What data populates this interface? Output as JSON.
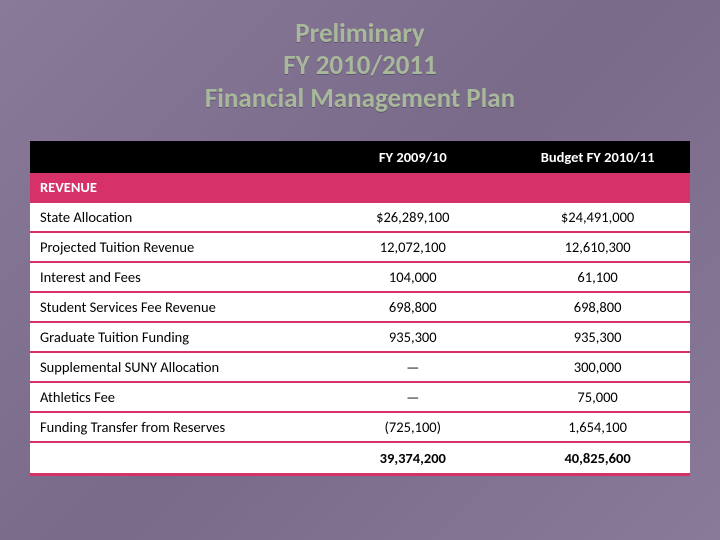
{
  "title": {
    "line1": "Preliminary",
    "line2": "FY 2010/2011",
    "line3": "Financial Management Plan",
    "color": "#a8b89a",
    "fontsize": 27
  },
  "background": {
    "gradient_start": "#8a7a9a",
    "gradient_mid": "#7a6a8a",
    "gradient_end": "#8a7a9a"
  },
  "table": {
    "columns": [
      {
        "label": "",
        "width": "44%"
      },
      {
        "label": "FY 2009/10",
        "width": "28%"
      },
      {
        "label": "Budget FY 2010/11",
        "width": "28%"
      }
    ],
    "section_label": "REVENUE",
    "rows": [
      {
        "label": "State Allocation",
        "fy2009": "$26,289,100",
        "fy2010": "$24,491,000"
      },
      {
        "label": "Projected Tuition Revenue",
        "fy2009": "12,072,100",
        "fy2010": "12,610,300"
      },
      {
        "label": "Interest and Fees",
        "fy2009": "104,000",
        "fy2010": "61,100"
      },
      {
        "label": "Student Services Fee Revenue",
        "fy2009": "698,800",
        "fy2010": "698,800"
      },
      {
        "label": "Graduate Tuition Funding",
        "fy2009": "935,300",
        "fy2010": "935,300"
      },
      {
        "label": "Supplemental SUNY Allocation",
        "fy2009": "—",
        "fy2010": "300,000"
      },
      {
        "label": "Athletics Fee",
        "fy2009": "—",
        "fy2010": "75,000"
      },
      {
        "label": "Funding Transfer from Reserves",
        "fy2009": "(725,100)",
        "fy2010": "1,654,100"
      }
    ],
    "total_row": {
      "label": "",
      "fy2009": "39,374,200",
      "fy2010": "40,825,600"
    },
    "header_bg": "#000000",
    "header_fg": "#ffffff",
    "section_bg": "#d63168",
    "section_fg": "#ffffff",
    "row_bg": "#ffffff",
    "row_fg": "#000000",
    "divider_color": "#d63168",
    "fontsize": 14.5
  }
}
